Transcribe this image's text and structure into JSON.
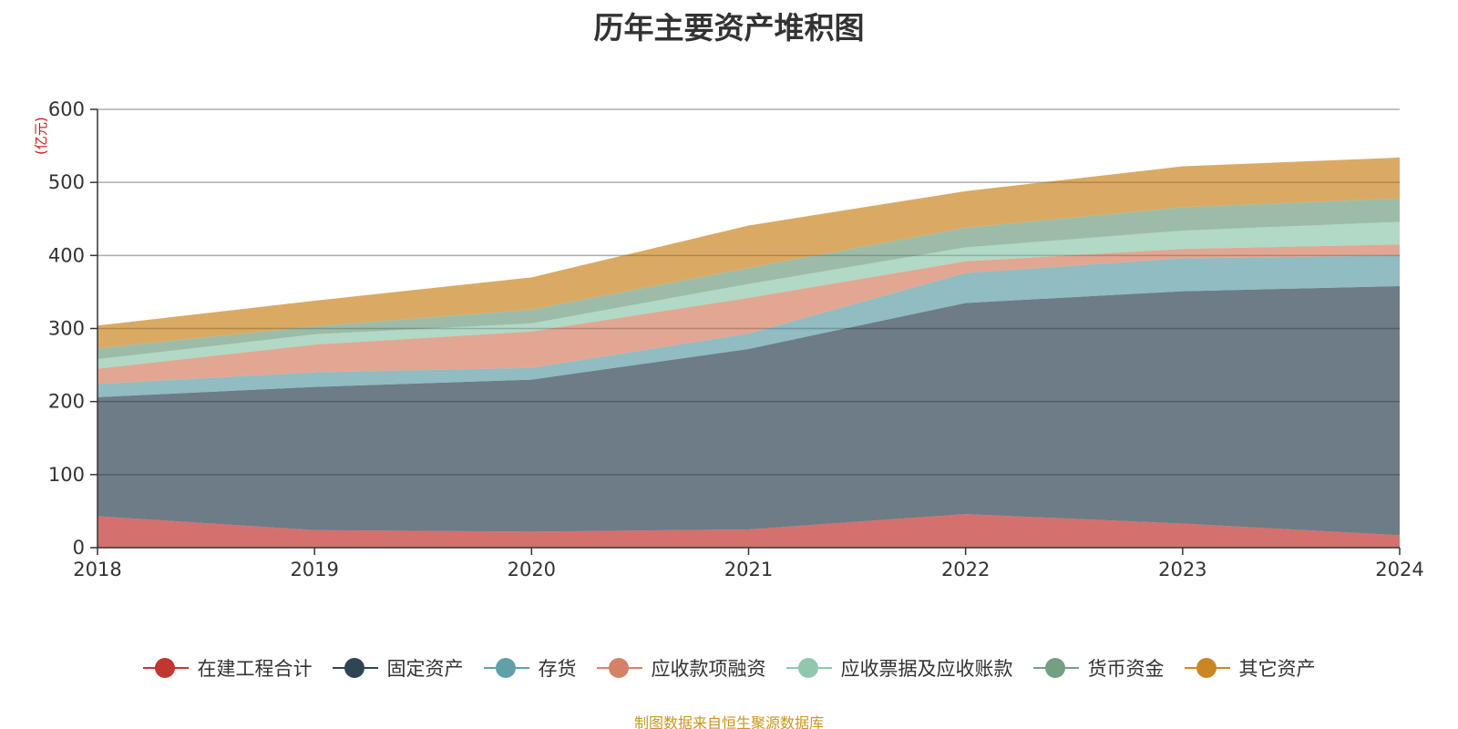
{
  "chart_data": {
    "type": "area",
    "stacked": true,
    "title": "历年主要资产堆积图",
    "ylabel": "(亿元)",
    "xlabel": "",
    "categories": [
      "2018",
      "2019",
      "2020",
      "2021",
      "2022",
      "2023",
      "2024"
    ],
    "ylim": [
      0,
      600
    ],
    "yticks": [
      0,
      100,
      200,
      300,
      400,
      500,
      600
    ],
    "grid": true,
    "legend_position": "bottom",
    "series": [
      {
        "name": "在建工程合计",
        "color": "#c23531",
        "values": [
          43,
          24,
          22,
          25,
          46,
          33,
          17
        ]
      },
      {
        "name": "固定资产",
        "color": "#2f4554",
        "values": [
          163,
          196,
          208,
          247,
          289,
          318,
          341
        ]
      },
      {
        "name": "存货",
        "color": "#61a0a8",
        "values": [
          18,
          20,
          16,
          21,
          41,
          45,
          42
        ]
      },
      {
        "name": "应收款项融资",
        "color": "#d48265",
        "values": [
          21,
          38,
          50,
          49,
          16,
          13,
          15
        ]
      },
      {
        "name": "应收票据及应收账款",
        "color": "#91c7ae",
        "values": [
          13,
          14,
          11,
          19,
          19,
          25,
          31
        ]
      },
      {
        "name": "货币资金",
        "color": "#749f83",
        "values": [
          15,
          11,
          19,
          22,
          27,
          32,
          32
        ]
      },
      {
        "name": "其它资产",
        "color": "#ca8622",
        "values": [
          31,
          35,
          44,
          58,
          50,
          56,
          56
        ]
      }
    ]
  },
  "footer": "制图数据来自恒生聚源数据库"
}
